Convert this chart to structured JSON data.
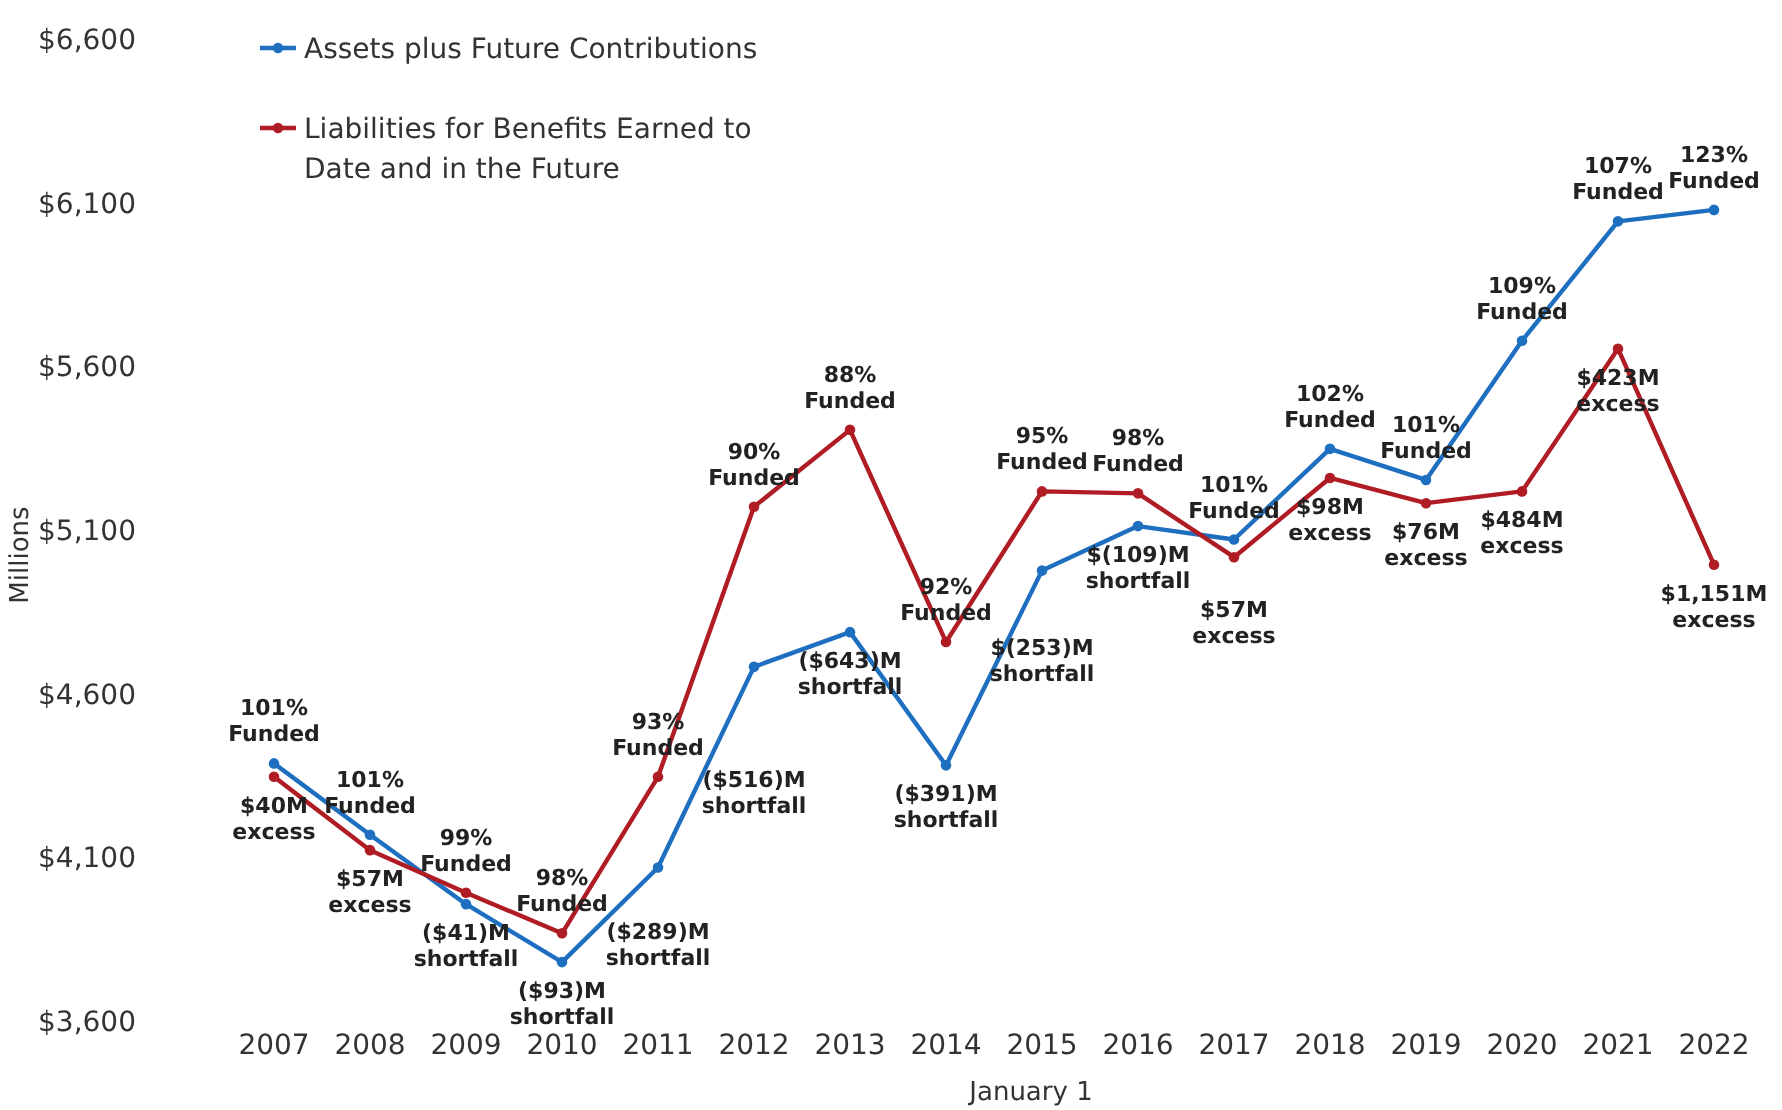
{
  "chart_data": {
    "type": "line",
    "xlabel": "January 1",
    "ylabel": "Millions",
    "categories": [
      "2007",
      "2008",
      "2009",
      "2010",
      "2011",
      "2012",
      "2013",
      "2014",
      "2015",
      "2016",
      "2017",
      "2018",
      "2019",
      "2020",
      "2021",
      "2022"
    ],
    "series": [
      {
        "name": "Assets plus Future Contributions",
        "color": "#1f6fc0",
        "values": [
          4390,
          4172,
          3960,
          3783,
          4072,
          4685,
          4791,
          4384,
          4979,
          5115,
          5074,
          5351,
          5256,
          5681,
          6046,
          6081
        ]
      },
      {
        "name": "Liabilities for Benefits Earned to Date and in the Future",
        "color": "#b01c24",
        "values": [
          4349,
          4125,
          3995,
          3871,
          4349,
          5174,
          5409,
          4761,
          5221,
          5215,
          5020,
          5262,
          5185,
          5221,
          5657,
          4997
        ]
      }
    ],
    "ylim": [
      3600,
      6600
    ],
    "yticks": [
      {
        "value": 3600,
        "label": "$3,600"
      },
      {
        "value": 4100,
        "label": "$4,100"
      },
      {
        "value": 4600,
        "label": "$4,600"
      },
      {
        "value": 5100,
        "label": "$5,100"
      },
      {
        "value": 5600,
        "label": "$5,600"
      },
      {
        "value": 6100,
        "label": "$6,100"
      },
      {
        "value": 6600,
        "label": "$6,600"
      }
    ],
    "grid": false,
    "legend": "top left",
    "marker": "circle",
    "line_style": "solid",
    "annotations": [
      "101%\nFunded",
      "$40M\nexcess",
      "101%\nFunded",
      "$57M\nexcess",
      "99%\nFunded",
      "($41)M\nshortfall",
      "98%\nFunded",
      "($93)M\nshortfall",
      "93%\nFunded",
      "($289)M\nshortfall",
      "90%\nFunded",
      "($516)M\nshortfall",
      "88%\nFunded",
      "($643)M\nshortfall",
      "92%\nFunded",
      "($391)M\nshortfall",
      "95%\nFunded",
      "$(253)M\nshortfall",
      "98%\nFunded",
      "$(109)M\nshortfall",
      "101%\nFunded",
      "$57M\nexcess",
      "102%\nFunded",
      "$98M\nexcess",
      "101%\nFunded",
      "$76M\nexcess",
      "109%\nFunded",
      "$484M\nexcess",
      "107%\nFunded",
      "$423M\nexcess",
      "123%\nFunded",
      "$1,151M\nexcess"
    ]
  }
}
